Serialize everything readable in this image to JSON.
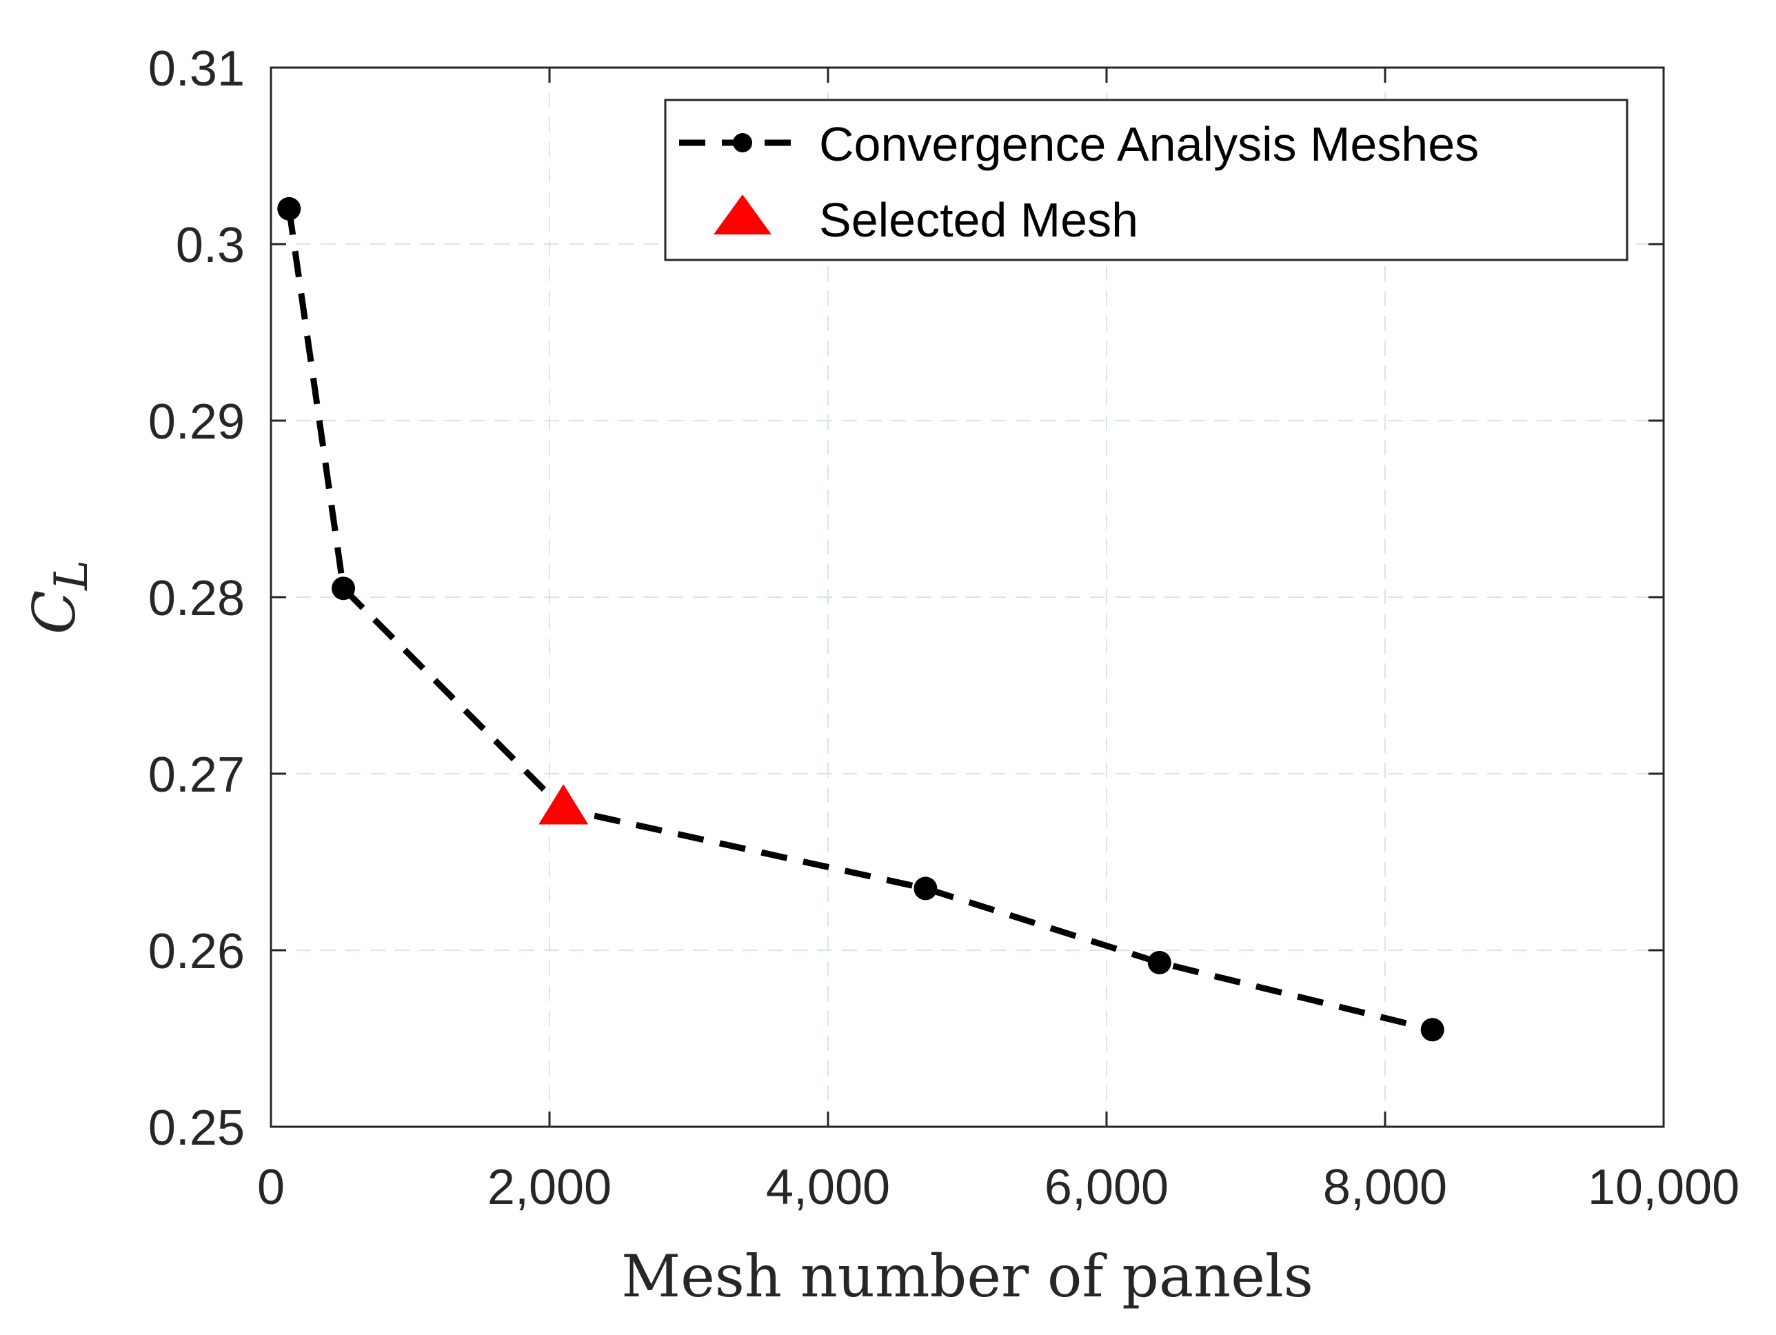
{
  "chart_data": {
    "type": "line",
    "title": "",
    "xlabel": "Mesh number of panels",
    "ylabel": "C",
    "ylabel_subscript": "L",
    "xlim": [
      0,
      10000
    ],
    "ylim": [
      0.25,
      0.31
    ],
    "xticks": [
      0,
      2000,
      4000,
      6000,
      8000,
      10000
    ],
    "xtick_labels": [
      "0",
      "2,000",
      "4,000",
      "6,000",
      "8,000",
      "10,000"
    ],
    "yticks": [
      0.25,
      0.26,
      0.27,
      0.28,
      0.29,
      0.3,
      0.31
    ],
    "ytick_labels": [
      "0.25",
      "0.26",
      "0.27",
      "0.28",
      "0.29",
      "0.3",
      "0.31"
    ],
    "grid": true,
    "legend_position": "top-right",
    "series": [
      {
        "name": "Convergence Analysis Meshes",
        "style": "dashed-line-with-dots",
        "color": "#000000",
        "points": [
          {
            "x": 130,
            "y": 0.302
          },
          {
            "x": 520,
            "y": 0.2805
          },
          {
            "x": 2100,
            "y": 0.268
          },
          {
            "x": 4700,
            "y": 0.2635
          },
          {
            "x": 6380,
            "y": 0.2593
          },
          {
            "x": 8340,
            "y": 0.2555
          }
        ]
      },
      {
        "name": "Selected Mesh",
        "style": "triangle-marker",
        "color": "#ff0000",
        "points": [
          {
            "x": 2100,
            "y": 0.268
          }
        ]
      }
    ]
  }
}
